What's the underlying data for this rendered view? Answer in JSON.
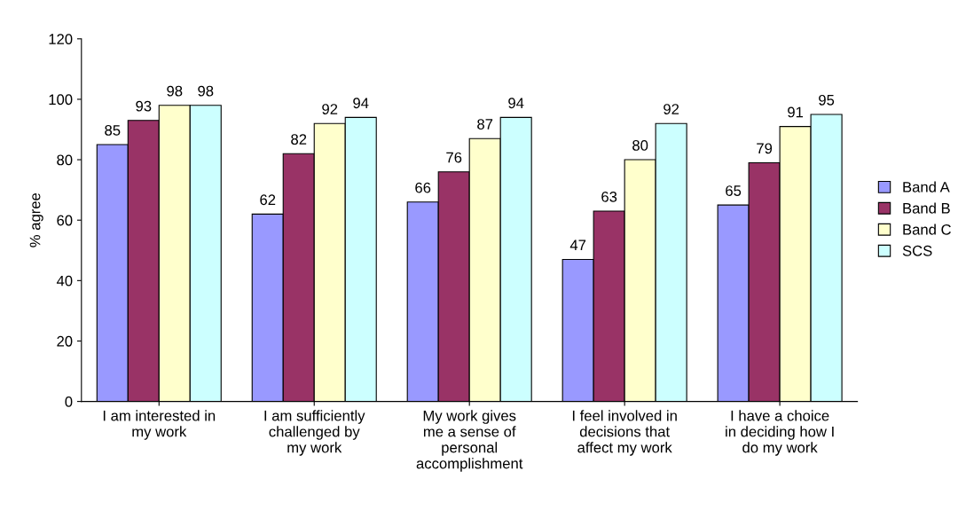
{
  "chart_data": {
    "type": "bar",
    "ylabel": "% agree",
    "categories": [
      "I am interested in\nmy work",
      "I am sufficiently\nchallenged by\nmy work",
      "My work gives\nme a sense of\npersonal\naccomplishment",
      "I feel involved in\ndecisions that\naffect my work",
      "I have a choice\nin deciding how I\ndo my work"
    ],
    "series": [
      {
        "name": "Band A",
        "color": "#9999ff",
        "values": [
          85,
          62,
          66,
          47,
          65
        ]
      },
      {
        "name": "Band B",
        "color": "#993366",
        "values": [
          93,
          82,
          76,
          63,
          79
        ]
      },
      {
        "name": "Band C",
        "color": "#ffffcc",
        "values": [
          98,
          92,
          87,
          80,
          91
        ]
      },
      {
        "name": "SCS",
        "color": "#ccffff",
        "values": [
          98,
          94,
          94,
          92,
          95
        ]
      }
    ],
    "ylim": [
      0,
      120
    ],
    "yticks": [
      0,
      20,
      40,
      60,
      80,
      100,
      120
    ],
    "data_labels": true,
    "grid": false,
    "legend": "right"
  }
}
